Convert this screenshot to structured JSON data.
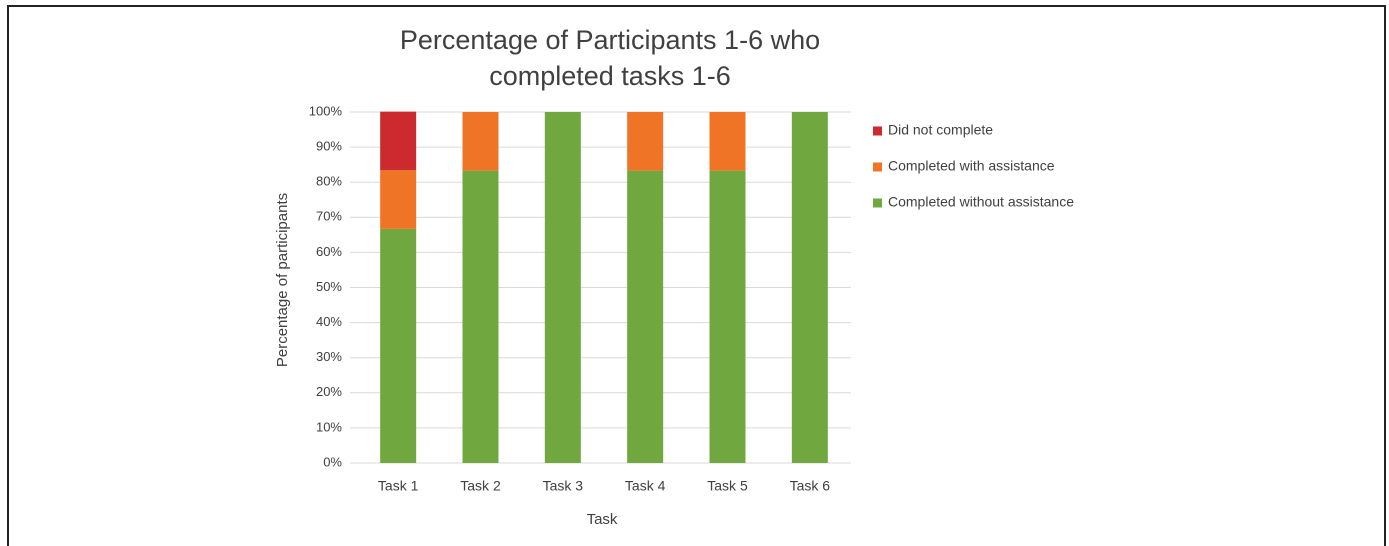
{
  "chart_data": {
    "type": "stacked_bar",
    "title": "Percentage of Participants 1-6 who completed tasks 1-6",
    "x_label": "Task",
    "y_label": "Percentage of participants",
    "categories": [
      "Task 1",
      "Task 2",
      "Task 3",
      "Task 4",
      "Task 5",
      "Task 6"
    ],
    "series": [
      {
        "name": "Completed without assistance",
        "color": "#70a83f",
        "values": [
          66.7,
          83.3,
          100,
          83.3,
          83.3,
          100
        ]
      },
      {
        "name": "Completed with assistance",
        "color": "#f07426",
        "values": [
          16.7,
          16.7,
          0,
          16.7,
          16.7,
          0
        ]
      },
      {
        "name": "Did not complete",
        "color": "#cc2a2e",
        "values": [
          16.7,
          0,
          0,
          0,
          0,
          0
        ]
      }
    ],
    "ylim": [
      0,
      100
    ],
    "yticks": [
      {
        "value": 0,
        "label": "0%"
      },
      {
        "value": 10,
        "label": "10%"
      },
      {
        "value": 20,
        "label": "20%"
      },
      {
        "value": 30,
        "label": "30%"
      },
      {
        "value": 40,
        "label": "40%"
      },
      {
        "value": 50,
        "label": "50%"
      },
      {
        "value": 60,
        "label": "60%"
      },
      {
        "value": 70,
        "label": "70%"
      },
      {
        "value": 80,
        "label": "80%"
      },
      {
        "value": 90,
        "label": "90%"
      },
      {
        "value": 100,
        "label": "100%"
      }
    ],
    "grid": true,
    "legend": "right"
  }
}
